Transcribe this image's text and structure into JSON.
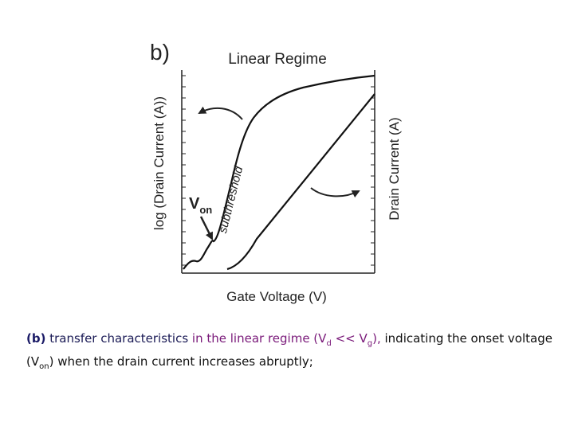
{
  "figure": {
    "panel_label": "b)",
    "title": "Linear Regime",
    "y_label_left": "log (Drain Current (A))",
    "y_label_right": "Drain Current (A)",
    "x_label": "Gate Voltage (V)",
    "von_label": {
      "main": "V",
      "sub": "on"
    },
    "curve_label": "subthreshold"
  },
  "caption": {
    "parts": [
      {
        "text": "(b)",
        "color": "#1a1a66",
        "bold": true
      },
      {
        "text": " transfer characteristics ",
        "color": "#1a1a55"
      },
      {
        "text": "in the linear regime (",
        "color": "#7a1a7a"
      },
      {
        "text": "V",
        "color": "#7a1a7a"
      },
      {
        "text": "d",
        "color": "#7a1a7a",
        "sub": true
      },
      {
        "text": " << ",
        "color": "#7a1a7a"
      },
      {
        "text": "V",
        "color": "#7a1a7a"
      },
      {
        "text": "g",
        "color": "#7a1a7a",
        "sub": true
      },
      {
        "text": "),",
        "color": "#7a1a7a"
      },
      {
        "text": " indicating the onset voltage (V",
        "color": "#111111"
      },
      {
        "text": "on",
        "color": "#111111",
        "sub": true
      },
      {
        "text": ") when the drain current increases abruptly;",
        "color": "#111111"
      }
    ]
  }
}
